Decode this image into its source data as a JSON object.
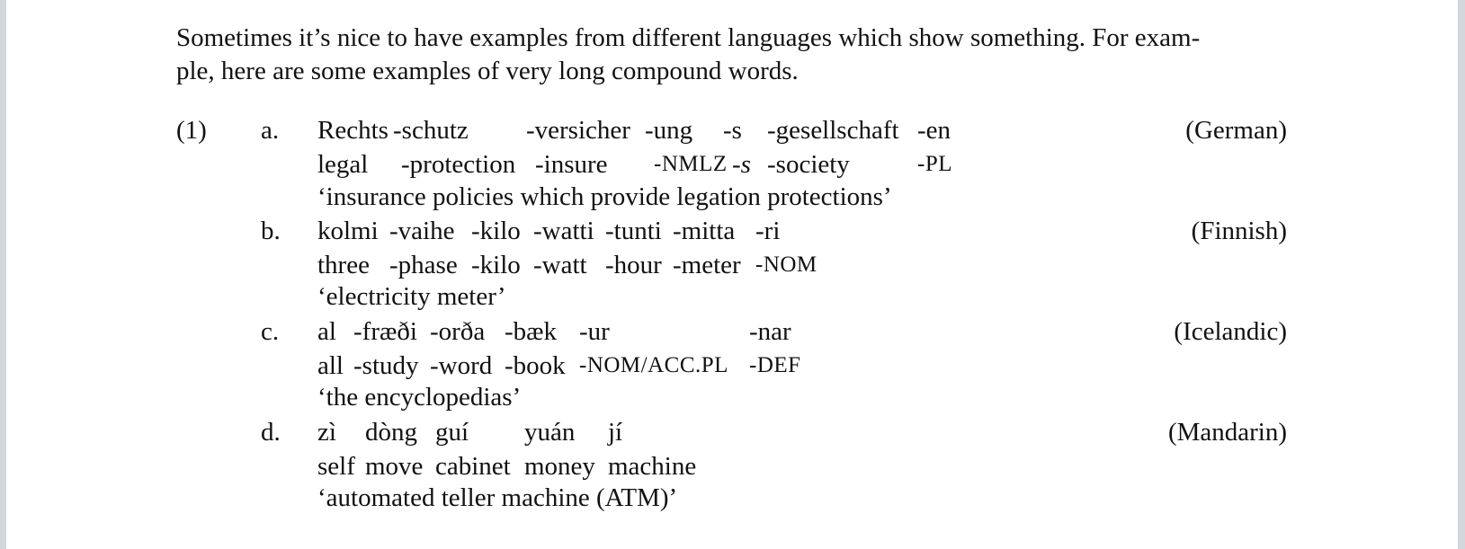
{
  "intro": {
    "line1": "Sometimes it’s nice to have examples from different languages which show something. For exam-",
    "line2": "ple, here are some examples of very long compound words."
  },
  "example": {
    "number": "(1)",
    "items": [
      {
        "label": "a.",
        "language": "(German)",
        "source": [
          "Rechts",
          "-schutz",
          "-versicher",
          "-ung",
          "-s",
          "-gesellschaft",
          "-en"
        ],
        "gloss": [
          "legal",
          "-protection",
          "-insure",
          "-NMLZ",
          "-s",
          "-society",
          "-PL"
        ],
        "translation": "‘insurance policies which provide legation protections’"
      },
      {
        "label": "b.",
        "language": "(Finnish)",
        "source": [
          "kolmi",
          "-vaihe",
          "-kilo",
          "-watti",
          "-tunti",
          "-mitta",
          "-ri"
        ],
        "gloss": [
          "three",
          "-phase",
          "-kilo",
          "-watt",
          "-hour",
          "-meter",
          "-NOM"
        ],
        "translation": "‘electricity meter’"
      },
      {
        "label": "c.",
        "language": "(Icelandic)",
        "source": [
          "al",
          "-fræði",
          "-orða",
          "-bæk",
          "-ur",
          "-nar"
        ],
        "gloss": [
          "all",
          "-study",
          "-word",
          "-book",
          "-NOM/ACC.PL",
          "-DEF"
        ],
        "translation": "‘the encyclopedias’"
      },
      {
        "label": "d.",
        "language": "(Mandarin)",
        "source": [
          "zì",
          "dòng",
          "guí",
          "yuán",
          "jí"
        ],
        "gloss": [
          "self",
          "move",
          "cabinet",
          "money",
          "machine"
        ],
        "translation": "‘automated teller machine (ATM)’"
      }
    ]
  }
}
